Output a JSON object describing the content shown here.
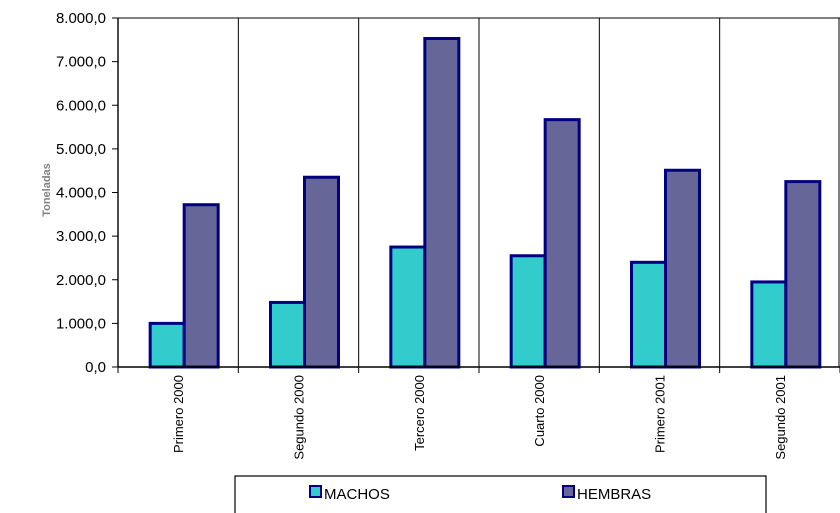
{
  "chart_data": {
    "type": "bar",
    "title": "",
    "xlabel": "",
    "ylabel": "Toneladas",
    "categories": [
      "Primero 2000",
      "Segundo 2000",
      "Tercero 2000",
      "Cuarto 2000",
      "Primero 2001",
      "Segundo 2001"
    ],
    "series": [
      {
        "name": "MACHOS",
        "values": [
          1000,
          1480,
          2750,
          2550,
          2400,
          1950
        ],
        "color": "#33CCCC"
      },
      {
        "name": "HEMBRAS",
        "values": [
          3720,
          4350,
          7530,
          5670,
          4510,
          4250
        ],
        "color": "#666699"
      }
    ],
    "bar_border_color": "#000080",
    "ylim": [
      0,
      8000
    ],
    "yticks": [
      "0,0",
      "1.000,0",
      "2.000,0",
      "3.000,0",
      "4.000,0",
      "5.000,0",
      "6.000,0",
      "7.000,0",
      "8.000,0"
    ],
    "grid": "vertical",
    "legend_position": "bottom"
  }
}
